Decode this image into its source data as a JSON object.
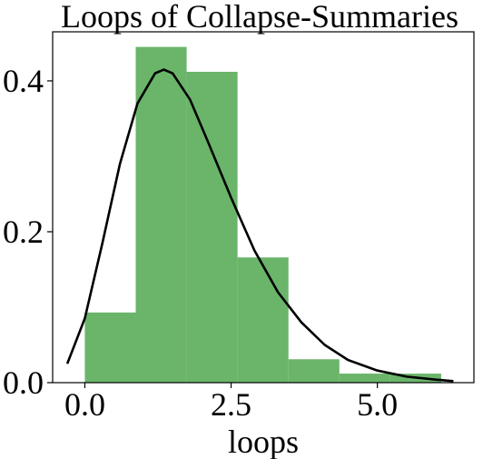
{
  "chart_data": {
    "type": "bar",
    "title": "Loops of Collapse-Summaries",
    "xlabel": "loops",
    "ylabel": "",
    "xlim": [
      -0.55,
      6.65
    ],
    "ylim": [
      0,
      0.465
    ],
    "xticks": [
      {
        "value": 0.0,
        "label": "0.0"
      },
      {
        "value": 2.5,
        "label": "2.5"
      },
      {
        "value": 5.0,
        "label": "5.0"
      }
    ],
    "yticks": [
      {
        "value": 0.0,
        "label": "0.0"
      },
      {
        "value": 0.2,
        "label": "0.2"
      },
      {
        "value": 0.4,
        "label": "0.4"
      }
    ],
    "bins": [
      {
        "x0": 0.0,
        "x1": 0.87,
        "density": 0.093
      },
      {
        "x0": 0.87,
        "x1": 1.74,
        "density": 0.445
      },
      {
        "x0": 1.74,
        "x1": 2.61,
        "density": 0.412
      },
      {
        "x0": 2.61,
        "x1": 3.48,
        "density": 0.166
      },
      {
        "x0": 3.48,
        "x1": 4.35,
        "density": 0.031
      },
      {
        "x0": 4.35,
        "x1": 5.22,
        "density": 0.012
      },
      {
        "x0": 5.22,
        "x1": 6.09,
        "density": 0.012
      }
    ],
    "curve": {
      "x": [
        -0.3,
        0.0,
        0.3,
        0.6,
        0.9,
        1.2,
        1.35,
        1.5,
        1.8,
        2.1,
        2.5,
        2.9,
        3.3,
        3.7,
        4.1,
        4.5,
        5.0,
        5.5,
        6.0,
        6.3
      ],
      "y": [
        0.025,
        0.085,
        0.185,
        0.29,
        0.37,
        0.41,
        0.415,
        0.41,
        0.375,
        0.32,
        0.245,
        0.175,
        0.12,
        0.08,
        0.05,
        0.03,
        0.016,
        0.008,
        0.004,
        0.002
      ]
    },
    "bar_color": "#6ab56a",
    "curve_color": "#000000",
    "grid": false,
    "legend": "none"
  }
}
